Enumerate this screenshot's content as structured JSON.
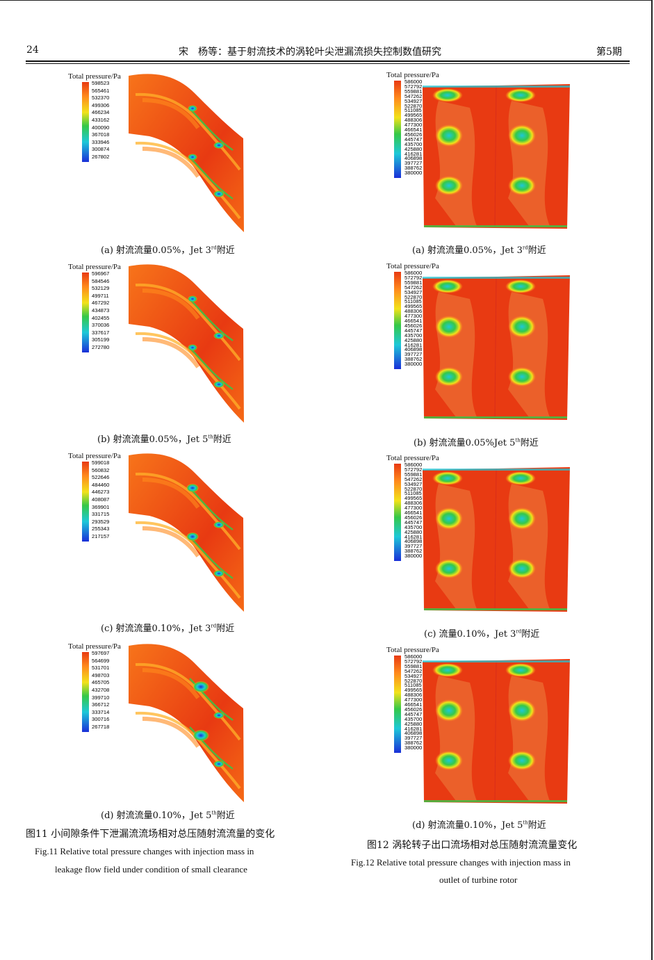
{
  "header": {
    "page_number": "24",
    "title": "宋　杨等：基于射流技术的涡轮叶尖泄漏流损失控制数值研究",
    "issue": "第5期"
  },
  "legend_title": "Total pressure/Pa",
  "left_panels": [
    {
      "ticks": [
        "598523",
        "565461",
        "532370",
        "499306",
        "466234",
        "433162",
        "400090",
        "367018",
        "333946",
        "300874",
        "267802"
      ],
      "caption": "(a)  射流流量0.05%，Jet 3",
      "sup": "rd",
      "tail": "附近"
    },
    {
      "ticks": [
        "596967",
        "584546",
        "532129",
        "499711",
        "467292",
        "434873",
        "402455",
        "370036",
        "337617",
        "305199",
        "272780"
      ],
      "caption": "(b) 射流流量0.05%，Jet 5",
      "sup": "th",
      "tail": "附近"
    },
    {
      "ticks": [
        "599018",
        "560832",
        "522646",
        "484460",
        "446273",
        "408087",
        "369901",
        "331715",
        "293529",
        "255343",
        "217157"
      ],
      "caption": "(c)  射流流量0.10%，Jet 3",
      "sup": "rd",
      "tail": "附近"
    },
    {
      "ticks": [
        "597697",
        "564699",
        "531701",
        "498703",
        "465705",
        "432708",
        "399710",
        "366712",
        "333714",
        "300716",
        "267718"
      ],
      "caption": "(d)  射流流量0.10%，Jet 5",
      "sup": "th",
      "tail": "附近"
    }
  ],
  "right_ticks": [
    "586000",
    "572792",
    "559881",
    "547262",
    "534927",
    "522870",
    "511085",
    "499565",
    "488306",
    "477300",
    "466541",
    "456026",
    "445747",
    "435700",
    "425880",
    "416281",
    "406898",
    "397727",
    "388762",
    "380000"
  ],
  "right_captions": [
    {
      "caption": "(a)  射流流量0.05%，Jet 3",
      "sup": "rd",
      "tail": "附近"
    },
    {
      "caption": "(b)  射流流量0.05%Jet 5",
      "sup": "th",
      "tail": "附近"
    },
    {
      "caption": "(c)  流量0.10%，Jet 3",
      "sup": "rd",
      "tail": "附近"
    },
    {
      "caption": "(d)  射流流量0.10%，Jet 5",
      "sup": "th",
      "tail": "附近"
    }
  ],
  "fig11": {
    "cn": "图11  小间隙条件下泄漏流流场相对总压随射流流量的变化",
    "en1": "Fig.11  Relative total pressure changes with injection mass in",
    "en2": "leakage flow field under condition of small clearance"
  },
  "fig12": {
    "cn": "图12  涡轮转子出口流场相对总压随射流流量变化",
    "en1": "Fig.12  Relative total pressure changes with injection mass in",
    "en2": "outlet of turbine rotor"
  },
  "colors": {
    "hot": "#e83a12",
    "warm": "#ff8a1c",
    "yellow": "#f2e21a",
    "green": "#35c848",
    "cyan": "#1ec8d8",
    "blue": "#1a2fd8"
  }
}
